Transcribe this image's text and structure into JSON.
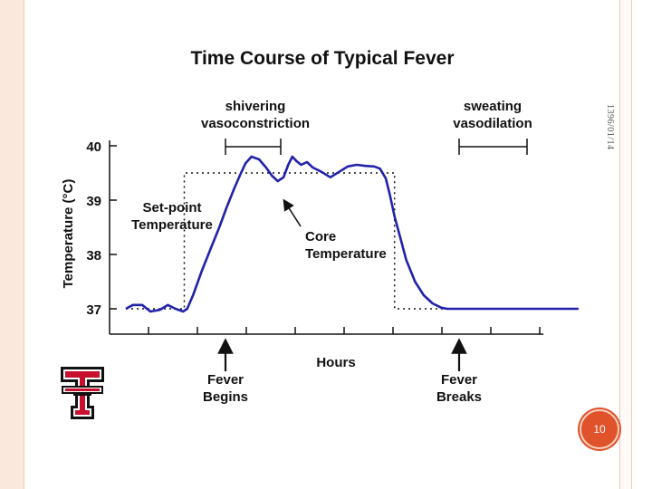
{
  "slide": {
    "side_date": "1396/01/14",
    "slide_number": "10"
  },
  "colors": {
    "accent": "#e0522a",
    "frame": "#fbe8dc",
    "curve": "#2222aa",
    "logo_red": "#c8102e"
  },
  "logo": {
    "icon": "texas-tech-double-t-logo"
  },
  "chart_data": {
    "type": "line",
    "title": "Time Course of Typical Fever",
    "xlabel": "Hours",
    "ylabel": "Temperature (°C)",
    "ylim": [
      37,
      40
    ],
    "yticks": [
      "37",
      "38",
      "39",
      "40"
    ],
    "x_tick_count": 9,
    "grid": false,
    "series": [
      {
        "name": "Core Temperature",
        "style": "solid",
        "color": "#2222aa",
        "x": [
          0.0,
          0.12,
          0.28,
          0.42,
          0.58,
          0.72,
          0.85,
          0.98,
          1.05,
          1.15,
          1.3,
          1.45,
          1.6,
          1.72,
          1.85,
          1.95,
          2.05,
          2.15,
          2.28,
          2.4,
          2.5,
          2.6,
          2.7,
          2.78,
          2.85,
          2.92,
          3.0,
          3.1,
          3.2,
          3.35,
          3.5,
          3.65,
          3.8,
          3.95,
          4.1,
          4.25,
          4.35,
          4.45,
          4.52,
          4.6,
          4.7,
          4.8,
          4.95,
          5.1,
          5.25,
          5.4,
          5.5,
          5.6,
          5.7,
          5.8,
          5.9,
          6.0,
          6.15,
          6.3,
          6.45,
          6.6,
          6.8,
          7.0,
          7.2,
          7.4,
          7.55,
          7.75
        ],
        "y": [
          37.0,
          37.07,
          37.07,
          36.95,
          36.98,
          37.07,
          37.0,
          36.95,
          37.0,
          37.25,
          37.7,
          38.1,
          38.5,
          38.85,
          39.2,
          39.45,
          39.68,
          39.8,
          39.75,
          39.6,
          39.45,
          39.35,
          39.42,
          39.65,
          39.8,
          39.72,
          39.65,
          39.7,
          39.6,
          39.52,
          39.42,
          39.52,
          39.62,
          39.65,
          39.63,
          39.62,
          39.58,
          39.4,
          39.1,
          38.7,
          38.3,
          37.9,
          37.5,
          37.25,
          37.1,
          37.02,
          37.0,
          37.0,
          37.0,
          37.0,
          37.0,
          37.0,
          37.0,
          37.0,
          37.0,
          37.0,
          37.0,
          37.0,
          37.0,
          37.0,
          37.0,
          37.0
        ]
      },
      {
        "name": "Set-point Temperature",
        "style": "dotted",
        "color": "#111111",
        "x": [
          0.0,
          1.0,
          1.0,
          4.6,
          4.6,
          5.9
        ],
        "y": [
          37.0,
          37.0,
          39.5,
          39.5,
          37.0,
          37.0
        ]
      }
    ],
    "annotations": {
      "phase_left": {
        "line1": "shivering",
        "line2": "vasoconstriction"
      },
      "phase_right": {
        "line1": "sweating",
        "line2": "vasodilation"
      },
      "setpoint_label": {
        "line1": "Set-point",
        "line2": "Temperature"
      },
      "core_label": {
        "line1": "Core",
        "line2": "Temperature"
      },
      "fever_begins": {
        "line1": "Fever",
        "line2": "Begins"
      },
      "fever_breaks": {
        "line1": "Fever",
        "line2": "Breaks"
      }
    }
  }
}
